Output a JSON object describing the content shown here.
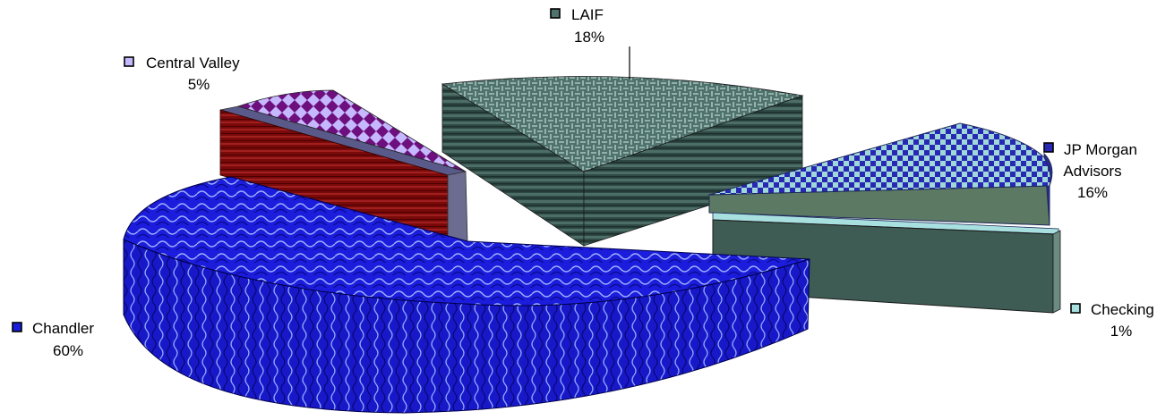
{
  "chart_data": {
    "type": "pie",
    "title": "",
    "exploded": true,
    "three_d": true,
    "legend": "labels-beside-slices",
    "categories": [
      "Chandler",
      "LAIF",
      "JP Morgan Advisors",
      "Checking",
      "Central Valley"
    ],
    "values": [
      60,
      18,
      16,
      1,
      5
    ],
    "value_labels": [
      "60%",
      "18%",
      "16%",
      "1%",
      "5%"
    ],
    "label_lines": [
      [
        "Chandler"
      ],
      [
        "LAIF"
      ],
      [
        "JP Morgan",
        "Advisors"
      ],
      [
        "Checking"
      ],
      [
        "Central Valley"
      ]
    ],
    "colors": {
      "Chandler": "#1a1adc",
      "LAIF": "#3e5e58",
      "JP Morgan Advisors": "#2a2ab0",
      "Checking": "#3c5a52",
      "Central Valley": "#7a1a8a"
    }
  }
}
